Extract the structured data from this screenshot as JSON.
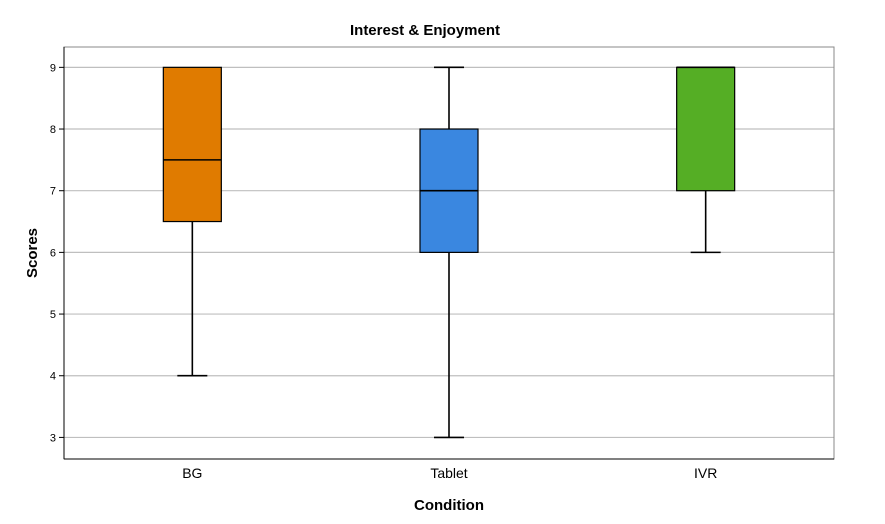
{
  "chart_data": {
    "type": "boxplot",
    "title": "Interest & Enjoyment",
    "xlabel": "Condition",
    "ylabel": "Scores",
    "ylim": [
      2.65,
      9.33
    ],
    "yticks": [
      3,
      4,
      5,
      6,
      7,
      8,
      9
    ],
    "ytick_labels": [
      "3",
      "4",
      "5",
      "6",
      "7",
      "8",
      "9"
    ],
    "grid": true,
    "categories": [
      "BG",
      "Tablet",
      "IVR"
    ],
    "boxes": [
      {
        "name": "BG",
        "whisker_low": 4,
        "q1": 6.5,
        "median": 7.5,
        "q3": 9,
        "whisker_high": 9,
        "color": "#E07B00"
      },
      {
        "name": "Tablet",
        "whisker_low": 3,
        "q1": 6,
        "median": 7,
        "q3": 8,
        "whisker_high": 9,
        "color": "#3A87E0"
      },
      {
        "name": "IVR",
        "whisker_low": 6,
        "q1": 7,
        "median": 9,
        "q3": 9,
        "whisker_high": 9,
        "color": "#55AE25"
      }
    ]
  }
}
